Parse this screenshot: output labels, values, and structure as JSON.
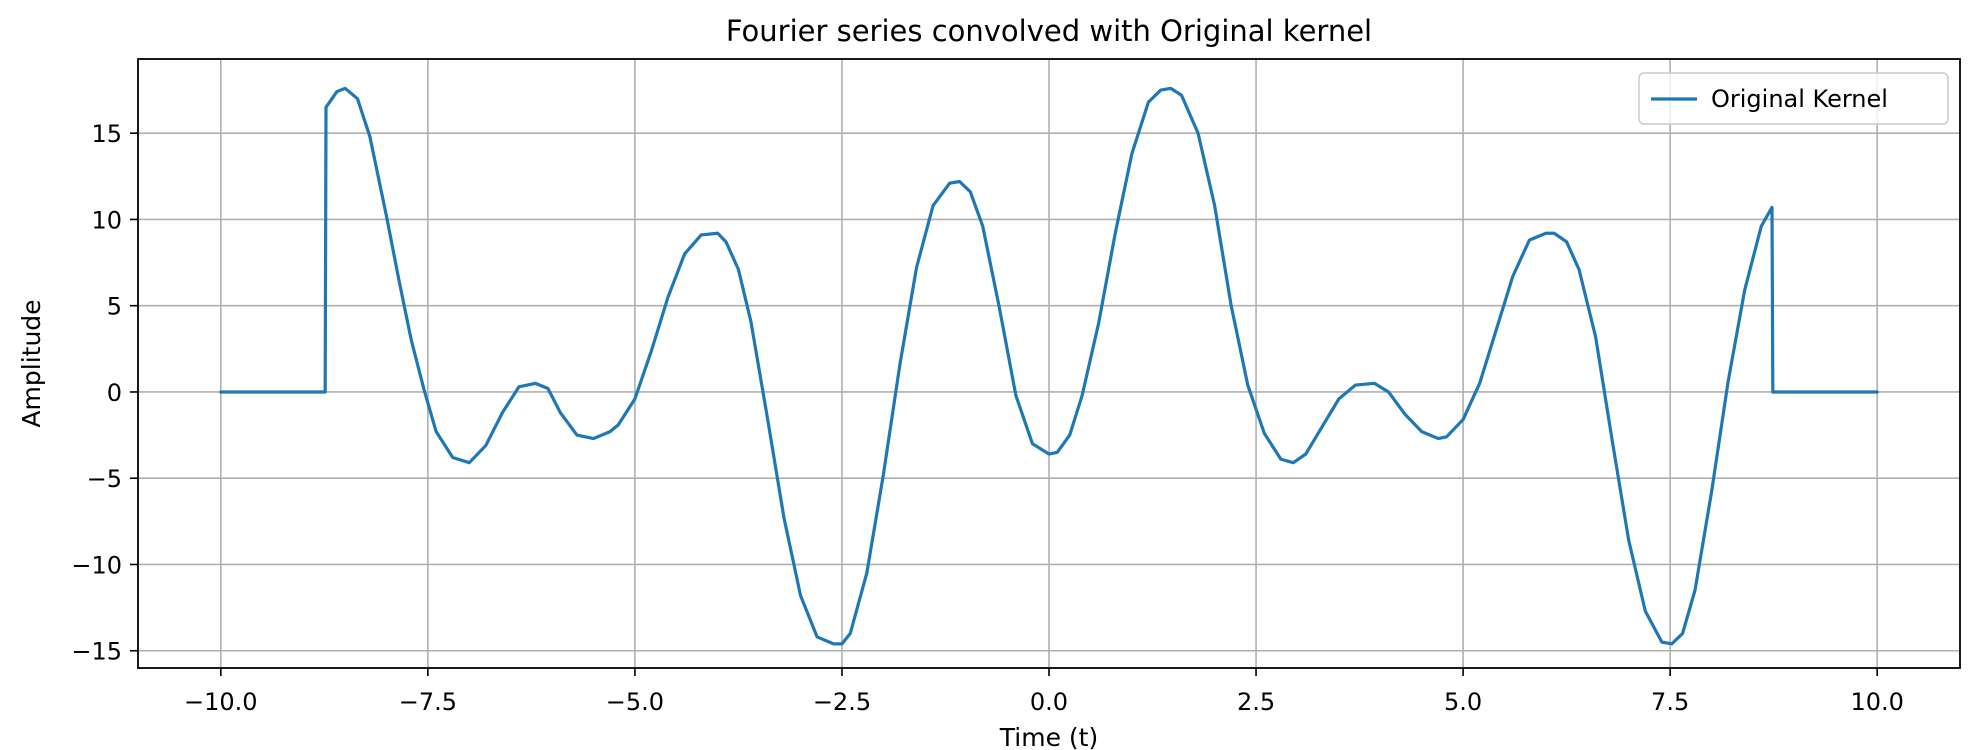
{
  "chart_data": {
    "type": "line",
    "title": "Fourier series convolved with Original kernel",
    "xlabel": "Time (t)",
    "ylabel": "Amplitude",
    "xlim": [
      -11.0,
      11.0
    ],
    "ylim": [
      -16.0,
      19.3
    ],
    "xticks": [
      -10.0,
      -7.5,
      -5.0,
      -2.5,
      0.0,
      2.5,
      5.0,
      7.5,
      10.0
    ],
    "xtick_labels": [
      "−10.0",
      "−7.5",
      "−5.0",
      "−2.5",
      "0.0",
      "2.5",
      "5.0",
      "7.5",
      "10.0"
    ],
    "yticks": [
      -15,
      -10,
      -5,
      0,
      5,
      10,
      15
    ],
    "ytick_labels": [
      "−15",
      "−10",
      "−5",
      "0",
      "5",
      "10",
      "15"
    ],
    "grid": true,
    "legend_position": "top-right",
    "series": [
      {
        "name": "Original Kernel",
        "color": "#1f77b4",
        "x": [
          -10.0,
          -8.74,
          -8.73,
          -8.6,
          -8.5,
          -8.35,
          -8.2,
          -8.0,
          -7.85,
          -7.7,
          -7.55,
          -7.4,
          -7.2,
          -7.0,
          -6.8,
          -6.6,
          -6.4,
          -6.2,
          -6.05,
          -5.9,
          -5.7,
          -5.5,
          -5.3,
          -5.2,
          -5.0,
          -4.8,
          -4.6,
          -4.4,
          -4.2,
          -4.0,
          -3.9,
          -3.75,
          -3.6,
          -3.4,
          -3.2,
          -3.0,
          -2.8,
          -2.6,
          -2.5,
          -2.4,
          -2.2,
          -2.0,
          -1.8,
          -1.6,
          -1.4,
          -1.2,
          -1.08,
          -0.95,
          -0.8,
          -0.6,
          -0.4,
          -0.2,
          0.0,
          0.1,
          0.25,
          0.4,
          0.6,
          0.8,
          1.0,
          1.2,
          1.35,
          1.47,
          1.6,
          1.8,
          2.0,
          2.2,
          2.4,
          2.6,
          2.8,
          2.95,
          3.1,
          3.3,
          3.5,
          3.7,
          3.93,
          4.1,
          4.3,
          4.5,
          4.7,
          4.8,
          5.0,
          5.2,
          5.4,
          5.6,
          5.8,
          6.0,
          6.1,
          6.25,
          6.4,
          6.6,
          6.8,
          7.0,
          7.2,
          7.4,
          7.52,
          7.65,
          7.8,
          8.0,
          8.2,
          8.4,
          8.6,
          8.73,
          8.74,
          10.0
        ],
        "values": [
          0.0,
          0.0,
          16.5,
          17.4,
          17.6,
          17.0,
          14.8,
          10.2,
          6.5,
          3.0,
          0.2,
          -2.3,
          -3.8,
          -4.1,
          -3.1,
          -1.2,
          0.3,
          0.5,
          0.2,
          -1.2,
          -2.5,
          -2.7,
          -2.3,
          -1.9,
          -0.4,
          2.4,
          5.5,
          8.0,
          9.1,
          9.2,
          8.7,
          7.1,
          4.1,
          -1.5,
          -7.3,
          -11.8,
          -14.2,
          -14.6,
          -14.6,
          -14.0,
          -10.5,
          -4.8,
          1.6,
          7.2,
          10.8,
          12.1,
          12.2,
          11.6,
          9.6,
          4.9,
          -0.2,
          -3.0,
          -3.6,
          -3.5,
          -2.5,
          -0.2,
          4.0,
          9.2,
          13.8,
          16.8,
          17.5,
          17.6,
          17.2,
          15.0,
          10.8,
          5.0,
          0.4,
          -2.4,
          -3.9,
          -4.1,
          -3.6,
          -2.0,
          -0.4,
          0.4,
          0.5,
          0.0,
          -1.3,
          -2.3,
          -2.7,
          -2.6,
          -1.6,
          0.5,
          3.6,
          6.7,
          8.8,
          9.2,
          9.2,
          8.7,
          7.1,
          3.2,
          -2.8,
          -8.6,
          -12.7,
          -14.5,
          -14.6,
          -14.0,
          -11.5,
          -5.8,
          0.6,
          5.9,
          9.6,
          10.7,
          0.0,
          0.0
        ]
      }
    ]
  }
}
